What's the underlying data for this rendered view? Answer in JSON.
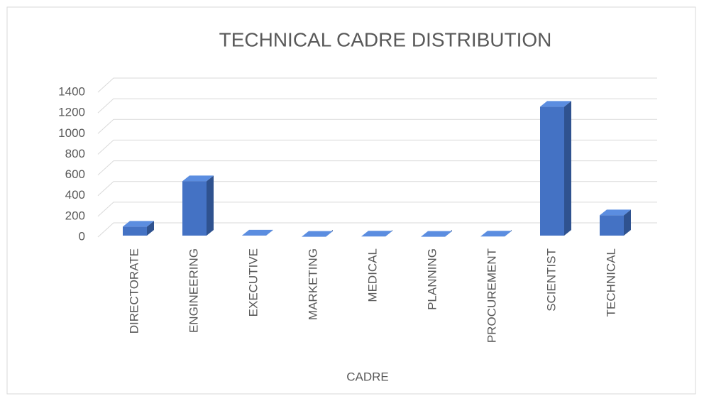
{
  "chart_data": {
    "type": "bar3d",
    "title": "TECHNICAL CADRE DISTRIBUTION",
    "x_label": "CADRE",
    "categories": [
      "DIRECTORATE",
      "ENGINEERING",
      "EXECUTIVE",
      "MARKETING",
      "MEDICAL",
      "PLANNING",
      "PROCUREMENT",
      "SCIENTIST",
      "TECHNICAL"
    ],
    "values": [
      100,
      540,
      15,
      3,
      5,
      3,
      5,
      1260,
      210
    ],
    "color": "#4472c4",
    "ylim": [
      0,
      1400
    ],
    "yticks": [
      0,
      200,
      400,
      600,
      800,
      1000,
      1200,
      1400
    ],
    "grid": true
  }
}
